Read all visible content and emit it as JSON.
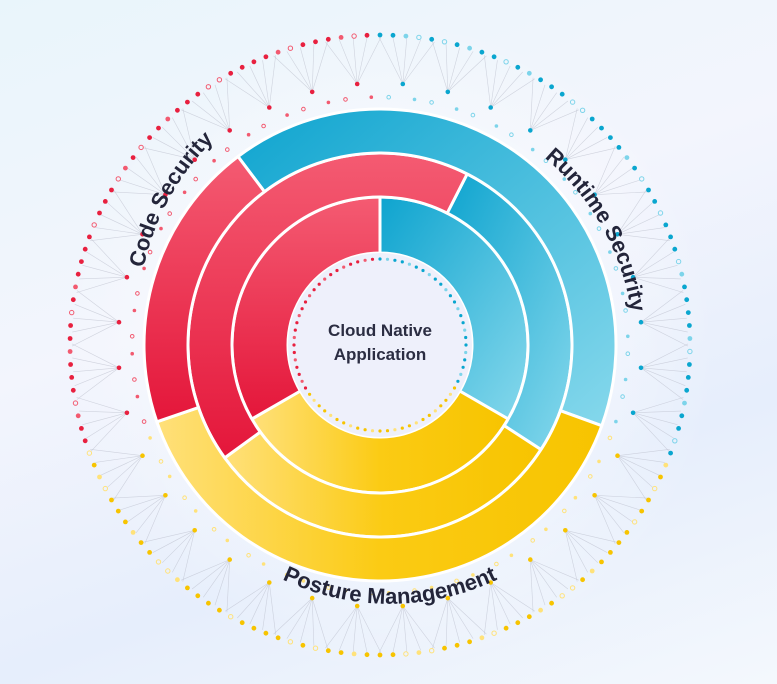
{
  "center": {
    "line1": "Cloud Native",
    "line2": "Application"
  },
  "segments": {
    "code": {
      "label": "Code Security",
      "color": "#e8203f",
      "light": "#f25a70"
    },
    "runtime": {
      "label": "Runtime Security",
      "color": "#0aa6cf",
      "light": "#7dd4ea"
    },
    "posture": {
      "label": "Posture Management",
      "color": "#f7c400",
      "light": "#ffe27a"
    }
  }
}
